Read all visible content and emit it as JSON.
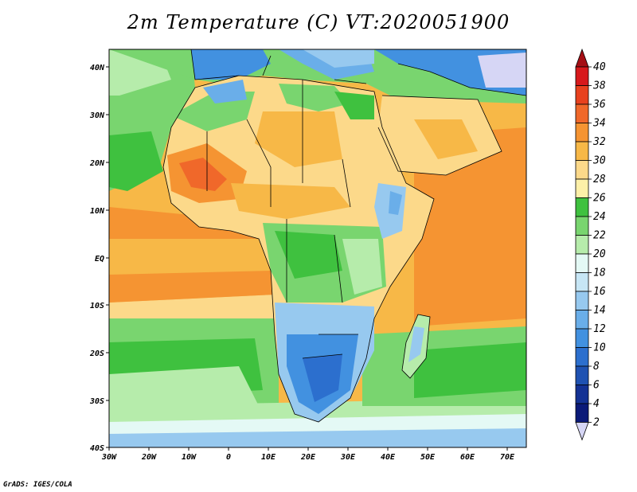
{
  "title": "2m Temperature (C) VT:2020051900",
  "credit": "GrADS: IGES/COLA",
  "map": {
    "lon_range": [
      -30,
      75
    ],
    "lat_range": [
      -40,
      46
    ],
    "x_ticks": [
      "30W",
      "20W",
      "10W",
      "0",
      "10E",
      "20E",
      "30E",
      "40E",
      "50E",
      "60E",
      "70E"
    ],
    "y_ticks": [
      "40N",
      "30N",
      "20N",
      "10N",
      "EQ",
      "10S",
      "20S",
      "30S",
      "40S"
    ]
  },
  "colorbar": {
    "labels": [
      "40",
      "38",
      "36",
      "34",
      "32",
      "30",
      "28",
      "26",
      "24",
      "22",
      "20",
      "18",
      "16",
      "14",
      "12",
      "10",
      "8",
      "6",
      "4",
      "2"
    ],
    "colors": [
      "#a50f15",
      "#d7191c",
      "#e8411e",
      "#f0682a",
      "#f59432",
      "#f7b847",
      "#fcd98a",
      "#fdf0a8",
      "#3fc13f",
      "#79d56f",
      "#b6ecab",
      "#e4f9f5",
      "#c7e6f5",
      "#97c9ef",
      "#6aaee9",
      "#4291e0",
      "#2c6fce",
      "#1f52b2",
      "#143294",
      "#0b1a78"
    ],
    "bottom_color": "#d6d6f5"
  }
}
